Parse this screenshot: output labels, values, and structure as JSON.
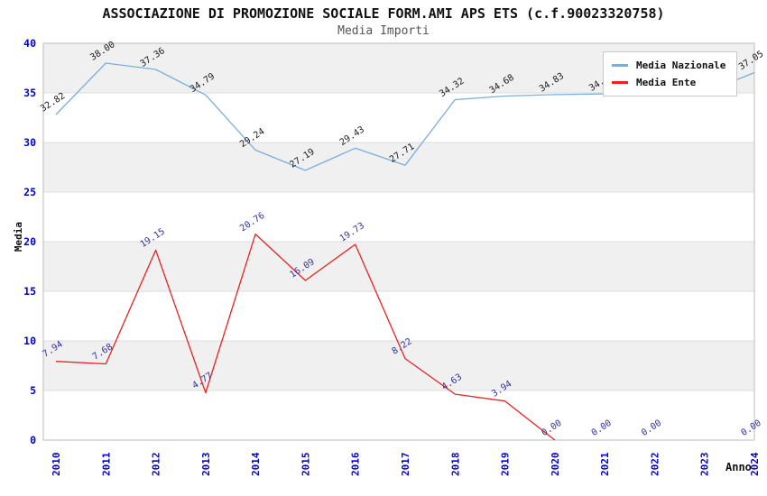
{
  "title": "ASSOCIAZIONE DI PROMOZIONE SOCIALE FORM.AMI APS ETS (c.f.90023320758)",
  "subtitle": "Media Importi",
  "chart_data": {
    "type": "line",
    "x": [
      "2010",
      "2011",
      "2012",
      "2013",
      "2014",
      "2015",
      "2016",
      "2017",
      "2018",
      "2019",
      "2020",
      "2021",
      "2022",
      "2023",
      "2024"
    ],
    "xlabel": "Anno",
    "ylabel": "Media",
    "ylim": [
      0,
      40
    ],
    "yticks": [
      0,
      5,
      10,
      15,
      20,
      25,
      30,
      35,
      40
    ],
    "grid": "horizontal gridlines with alternating gray/white bands every 5 units",
    "legend_position": "top-right",
    "colors": {
      "band": "#f0f0f0",
      "grid": "#dcdcdc",
      "border": "#bdbdbd",
      "tick": "#0202cc"
    },
    "series": [
      {
        "name": "Media Nazionale",
        "color": "#7aaedf",
        "label_color": "#1a1a1a",
        "values": [
          32.82,
          38.0,
          37.36,
          34.79,
          29.24,
          27.19,
          29.43,
          27.71,
          34.32,
          34.68,
          34.83,
          34.9,
          34.95,
          35.0,
          37.05
        ],
        "point_labels": [
          "32.82",
          "38.00",
          "37.36",
          "34.79",
          "29.24",
          "27.19",
          "29.43",
          "27.71",
          "34.32",
          "34.68",
          "34.83",
          "34.90",
          "",
          "",
          "37.05"
        ],
        "note": "2021-2023 labels are covered by the legend box; only '34' of 2021 label is visible"
      },
      {
        "name": "Media Ente",
        "color": "#e82222",
        "label_color": "#333399",
        "values": [
          7.94,
          7.68,
          19.15,
          4.77,
          20.76,
          16.09,
          19.73,
          8.22,
          4.63,
          3.94,
          0.0,
          0.0,
          0.0,
          null,
          0.0
        ],
        "point_labels": [
          "7.94",
          "7.68",
          "19.15",
          "4.77",
          "20.76",
          "16.09",
          "19.73",
          "8.22",
          "4.63",
          "3.94",
          "0.00",
          "0.00",
          "0.00",
          "",
          "0.00"
        ],
        "line_through_index": 10,
        "note": "red line is drawn only through 2020; 2021/2022/2024 show 0.00 labels only, 2023 has no point"
      }
    ]
  }
}
